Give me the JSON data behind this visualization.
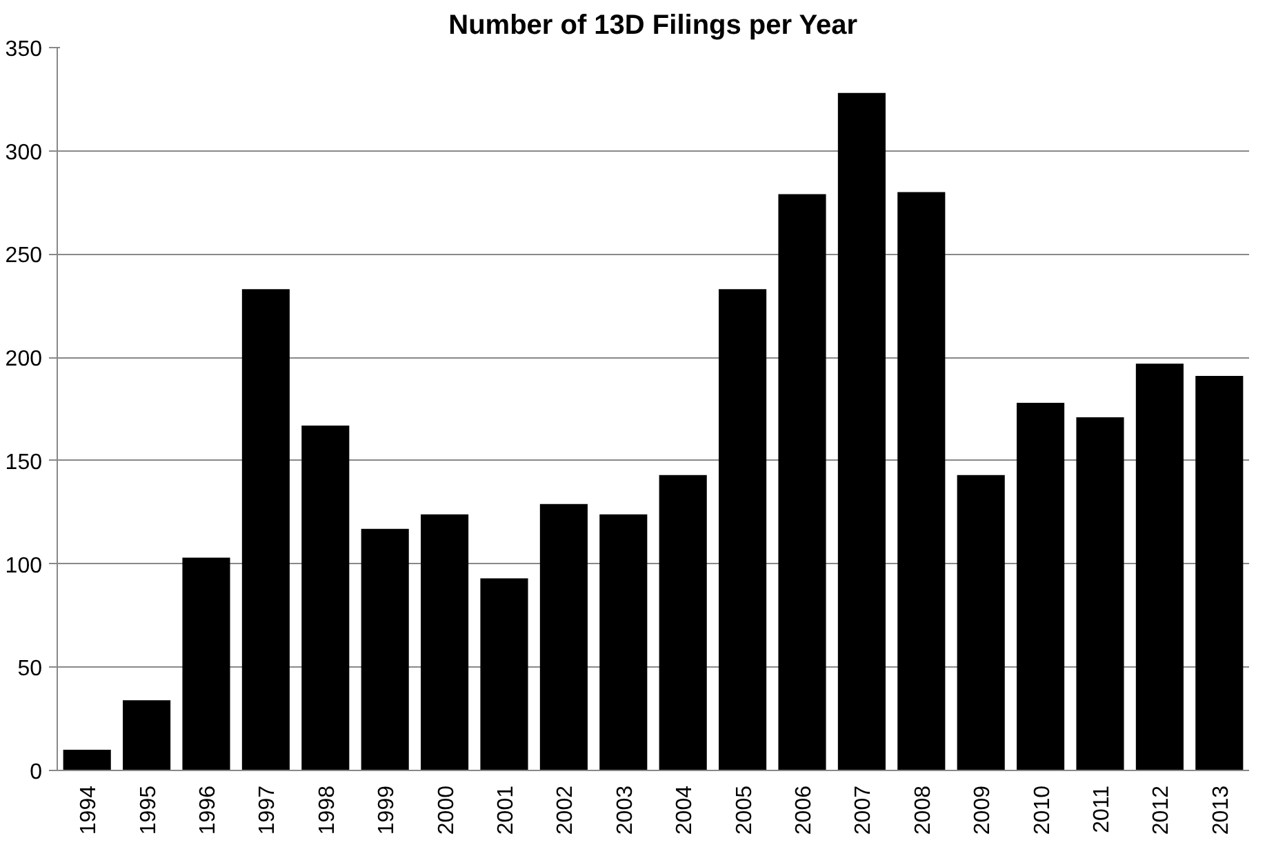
{
  "chart_data": {
    "type": "bar",
    "title": "Number of 13D Filings per Year",
    "categories": [
      "1994",
      "1995",
      "1996",
      "1997",
      "1998",
      "1999",
      "2000",
      "2001",
      "2002",
      "2003",
      "2004",
      "2005",
      "2006",
      "2007",
      "2008",
      "2009",
      "2010",
      "2011",
      "2012",
      "2013"
    ],
    "values": [
      10,
      34,
      103,
      233,
      167,
      117,
      124,
      93,
      129,
      124,
      143,
      233,
      279,
      328,
      280,
      143,
      178,
      171,
      197,
      191
    ],
    "color": "#000000",
    "ylim": [
      0,
      350
    ],
    "yticks": [
      0,
      50,
      100,
      150,
      200,
      250,
      300,
      350
    ],
    "grid": "y"
  }
}
